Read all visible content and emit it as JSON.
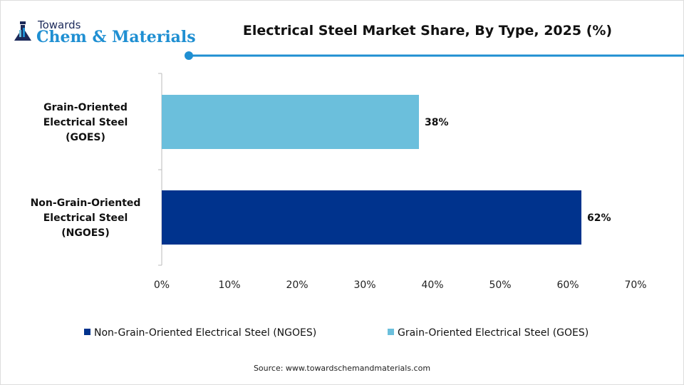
{
  "logo": {
    "line1": "Towards",
    "line2": "Chem & Materials"
  },
  "title": "Electrical Steel Market Share, By Type, 2025 (%)",
  "source": "Source: www.towardschemandmaterials.com",
  "chart_data": {
    "type": "bar",
    "orientation": "horizontal",
    "title": "Electrical Steel Market Share, By Type, 2025 (%)",
    "categories": [
      "Grain-Oriented Electrical Steel (GOES)",
      "Non-Grain-Oriented Electrical Steel (NGOES)"
    ],
    "category_lines": [
      [
        "Grain-Oriented",
        "Electrical Steel",
        "(GOES)"
      ],
      [
        "Non-Grain-Oriented",
        "Electrical Steel",
        "(NGOES)"
      ]
    ],
    "values": [
      38,
      62
    ],
    "data_labels": [
      "38%",
      "62%"
    ],
    "colors": [
      "#6bbfdc",
      "#00338d"
    ],
    "xlim": [
      0,
      70
    ],
    "xticks": [
      "0%",
      "10%",
      "20%",
      "30%",
      "40%",
      "50%",
      "60%",
      "70%"
    ],
    "grid": false,
    "legend_position": "bottom",
    "legend": [
      {
        "name": "Non-Grain-Oriented Electrical Steel (NGOES)",
        "color": "#00338d"
      },
      {
        "name": "Grain-Oriented Electrical Steel (GOES)",
        "color": "#6bbfdc"
      }
    ]
  }
}
